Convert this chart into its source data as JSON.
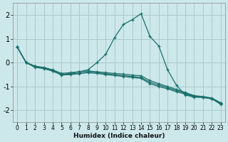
{
  "xlabel": "Humidex (Indice chaleur)",
  "background_color": "#cce8eb",
  "grid_color": "#aac8cc",
  "line_color": "#1a6e6a",
  "xlim": [
    -0.5,
    23.5
  ],
  "ylim": [
    -2.5,
    2.5
  ],
  "yticks": [
    -2,
    -1,
    0,
    1,
    2
  ],
  "xticks": [
    0,
    1,
    2,
    3,
    4,
    5,
    6,
    7,
    8,
    9,
    10,
    11,
    12,
    13,
    14,
    15,
    16,
    17,
    18,
    19,
    20,
    21,
    22,
    23
  ],
  "series": [
    {
      "x": [
        0,
        1,
        2,
        3,
        4,
        5,
        6,
        7,
        8,
        9,
        10,
        11,
        12,
        13,
        14,
        15,
        16,
        17,
        18,
        19,
        20,
        21,
        22,
        23
      ],
      "y": [
        0.65,
        0.0,
        -0.2,
        -0.25,
        -0.35,
        -0.5,
        -0.45,
        -0.38,
        -0.3,
        0.0,
        0.35,
        1.05,
        1.6,
        1.8,
        2.05,
        1.1,
        0.7,
        -0.3,
        -0.95,
        -1.35,
        -1.45,
        -1.45,
        -1.5,
        -1.75
      ]
    },
    {
      "x": [
        0,
        1,
        2,
        3,
        4,
        5,
        6,
        7,
        8,
        9,
        10,
        11,
        12,
        13,
        14,
        15,
        16,
        17,
        18,
        19,
        20,
        21,
        22,
        23
      ],
      "y": [
        0.65,
        0.0,
        -0.15,
        -0.2,
        -0.3,
        -0.45,
        -0.42,
        -0.38,
        -0.35,
        -0.38,
        -0.42,
        -0.45,
        -0.48,
        -0.52,
        -0.55,
        -0.75,
        -0.88,
        -1.0,
        -1.12,
        -1.25,
        -1.38,
        -1.42,
        -1.48,
        -1.68
      ]
    },
    {
      "x": [
        0,
        1,
        2,
        3,
        4,
        5,
        6,
        7,
        8,
        9,
        10,
        11,
        12,
        13,
        14,
        15,
        16,
        17,
        18,
        19,
        20,
        21,
        22,
        23
      ],
      "y": [
        0.65,
        0.0,
        -0.15,
        -0.22,
        -0.32,
        -0.5,
        -0.48,
        -0.44,
        -0.4,
        -0.42,
        -0.46,
        -0.5,
        -0.54,
        -0.58,
        -0.62,
        -0.82,
        -0.94,
        -1.05,
        -1.17,
        -1.28,
        -1.4,
        -1.44,
        -1.5,
        -1.7
      ]
    },
    {
      "x": [
        0,
        1,
        2,
        3,
        4,
        5,
        6,
        7,
        8,
        9,
        10,
        11,
        12,
        13,
        14,
        15,
        16,
        17,
        18,
        19,
        20,
        21,
        22,
        23
      ],
      "y": [
        0.65,
        0.0,
        -0.15,
        -0.24,
        -0.35,
        -0.52,
        -0.5,
        -0.46,
        -0.42,
        -0.45,
        -0.5,
        -0.54,
        -0.58,
        -0.62,
        -0.66,
        -0.88,
        -1.0,
        -1.1,
        -1.22,
        -1.32,
        -1.42,
        -1.46,
        -1.52,
        -1.72
      ]
    }
  ]
}
